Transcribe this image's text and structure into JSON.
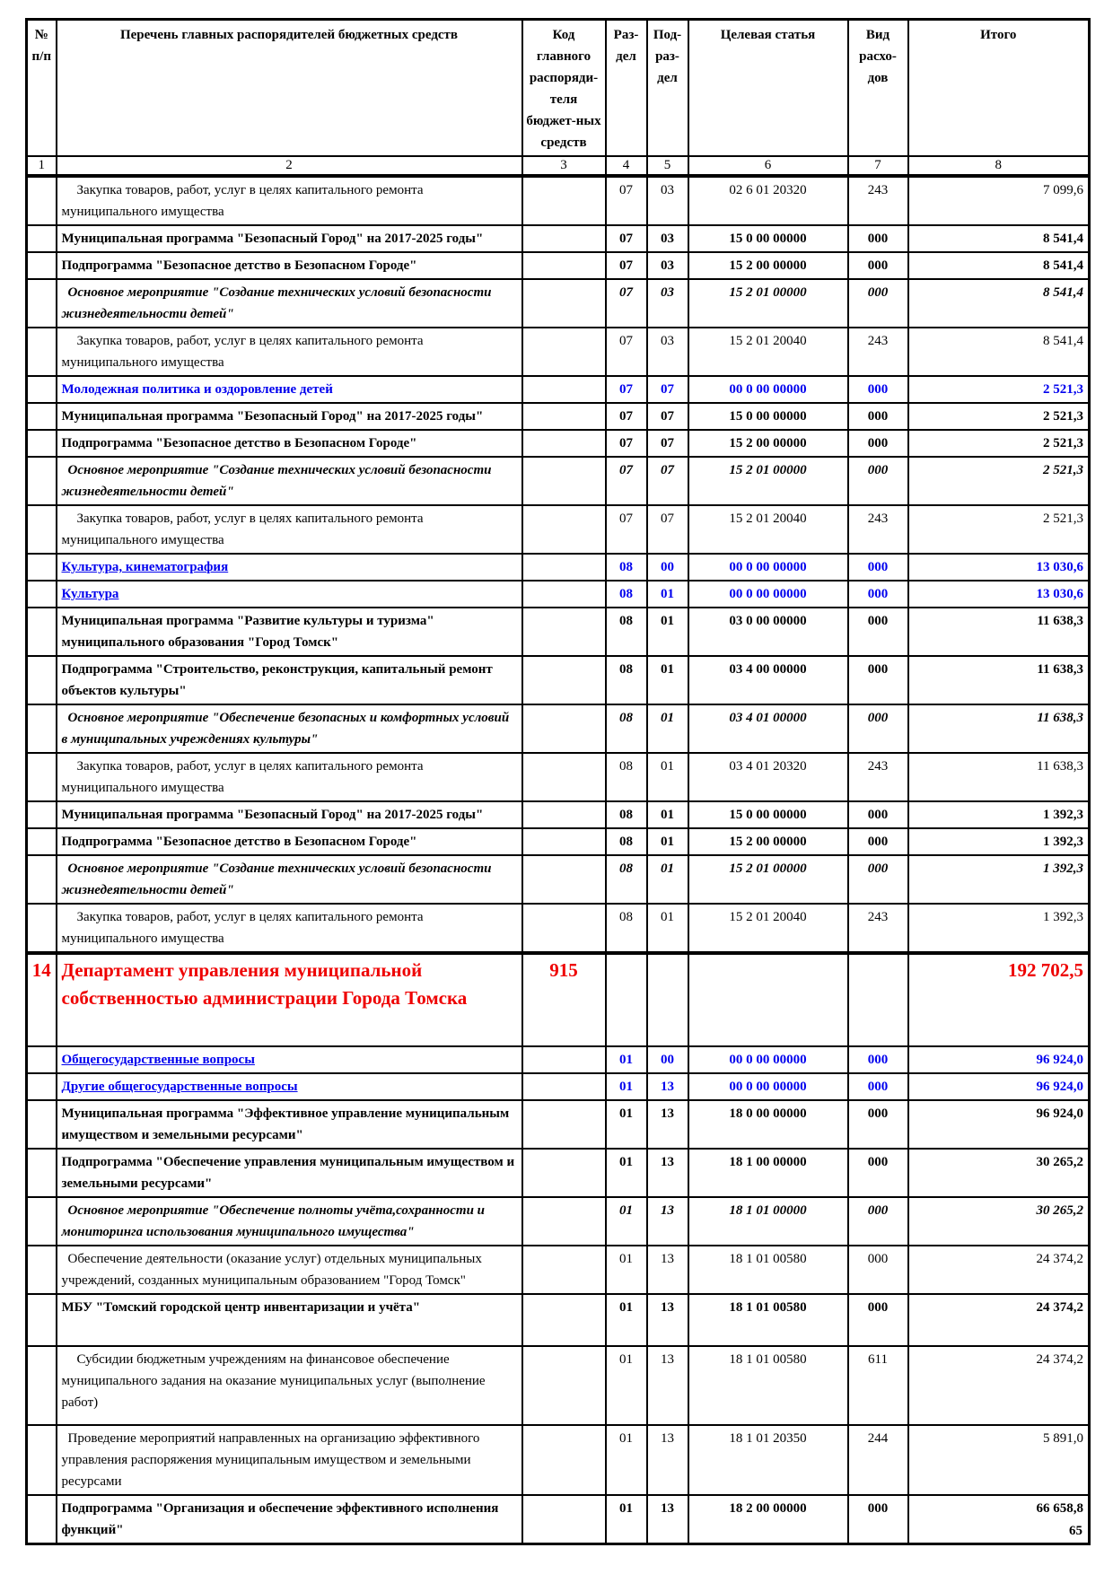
{
  "page": {
    "number": "65"
  },
  "colors": {
    "section_blue": "#0000ee",
    "department_red": "#ee0000",
    "text_black": "#000000"
  },
  "table": {
    "headers": {
      "col1": "№ п/п",
      "col2": "Перечень главных распорядителей бюджетных средств",
      "col3": "Код главного распоряди-теля бюджет-ных средств",
      "col4": "Раз-дел",
      "col5": "Под-раз-дел",
      "col6": "Целевая статья",
      "col7": "Вид расхо-дов",
      "col8": "Итого"
    },
    "column_numbers": [
      "1",
      "2",
      "3",
      "4",
      "5",
      "6",
      "7",
      "8"
    ],
    "rows": [
      {
        "n": "",
        "name": "Закупка товаров, работ, услуг в целях капитального ремонта муниципального имущества",
        "code": "",
        "rz": "07",
        "pr": "03",
        "cs": "02 6 01 20320",
        "vr": "243",
        "total": "7 099,6",
        "cls": "indent"
      },
      {
        "n": "",
        "name": "Муниципальная программа \"Безопасный Город\" на 2017-2025 годы\"",
        "code": "",
        "rz": "07",
        "pr": "03",
        "cs": "15 0 00 00000",
        "vr": "000",
        "total": "8 541,4",
        "cls": "bold"
      },
      {
        "n": "",
        "name": "Подпрограмма \"Безопасное детство в Безопасном Городе\"",
        "code": "",
        "rz": "07",
        "pr": "03",
        "cs": "15 2 00 00000",
        "vr": "000",
        "total": "8 541,4",
        "cls": "bold"
      },
      {
        "n": "",
        "name": "Основное мероприятие \"Создание технических условий безопасности жизнедеятельности детей\"",
        "code": "",
        "rz": "07",
        "pr": "03",
        "cs": "15 2 01 00000",
        "vr": "000",
        "total": "8 541,4",
        "cls": "bi ind-sm"
      },
      {
        "n": "",
        "name": "Закупка товаров, работ, услуг в целях капитального ремонта муниципального имущества",
        "code": "",
        "rz": "07",
        "pr": "03",
        "cs": "15 2 01 20040",
        "vr": "243",
        "total": "8 541,4",
        "cls": "indent"
      },
      {
        "n": "",
        "name": "Молодежная политика и оздоровление детей",
        "code": "",
        "rz": "07",
        "pr": "07",
        "cs": "00 0 00 00000",
        "vr": "000",
        "total": "2 521,3",
        "cls": "blue"
      },
      {
        "n": "",
        "name": "Муниципальная программа \"Безопасный Город\" на 2017-2025 годы\"",
        "code": "",
        "rz": "07",
        "pr": "07",
        "cs": "15 0 00 00000",
        "vr": "000",
        "total": "2 521,3",
        "cls": "bold"
      },
      {
        "n": "",
        "name": "Подпрограмма \"Безопасное детство в Безопасном Городе\"",
        "code": "",
        "rz": "07",
        "pr": "07",
        "cs": "15 2 00 00000",
        "vr": "000",
        "total": "2 521,3",
        "cls": "bold"
      },
      {
        "n": "",
        "name": "Основное мероприятие \"Создание технических условий безопасности жизнедеятельности детей\"",
        "code": "",
        "rz": "07",
        "pr": "07",
        "cs": "15 2 01 00000",
        "vr": "000",
        "total": "2 521,3",
        "cls": "bi ind-sm"
      },
      {
        "n": "",
        "name": "Закупка товаров, работ, услуг в целях капитального ремонта муниципального имущества",
        "code": "",
        "rz": "07",
        "pr": "07",
        "cs": "15 2 01 20040",
        "vr": "243",
        "total": "2 521,3",
        "cls": "indent"
      },
      {
        "n": "",
        "name": "Культура, кинематография",
        "code": "",
        "rz": "08",
        "pr": "00",
        "cs": "00 0 00 00000",
        "vr": "000",
        "total": "13 030,6",
        "cls": "blue ul"
      },
      {
        "n": "",
        "name": "Культура",
        "code": "",
        "rz": "08",
        "pr": "01",
        "cs": "00 0 00 00000",
        "vr": "000",
        "total": "13 030,6",
        "cls": "blue ul"
      },
      {
        "n": "",
        "name": "Муниципальная программа \"Развитие культуры и туризма\" муниципального образования \"Город Томск\"",
        "code": "",
        "rz": "08",
        "pr": "01",
        "cs": "03 0 00 00000",
        "vr": "000",
        "total": "11 638,3",
        "cls": "bold"
      },
      {
        "n": "",
        "name": "Подпрограмма \"Строительство, реконструкция, капитальный ремонт объектов культуры\"",
        "code": "",
        "rz": "08",
        "pr": "01",
        "cs": "03 4 00 00000",
        "vr": "000",
        "total": "11 638,3",
        "cls": "bold"
      },
      {
        "n": "",
        "name": "Основное мероприятие \"Обеспечение безопасных и комфортных условий в муниципальных учреждениях культуры\"",
        "code": "",
        "rz": "08",
        "pr": "01",
        "cs": "03 4 01 00000",
        "vr": "000",
        "total": "11 638,3",
        "cls": "bi ind-sm"
      },
      {
        "n": "",
        "name": "Закупка товаров, работ, услуг в целях капитального ремонта муниципального имущества",
        "code": "",
        "rz": "08",
        "pr": "01",
        "cs": "03 4 01 20320",
        "vr": "243",
        "total": "11 638,3",
        "cls": "indent"
      },
      {
        "n": "",
        "name": "Муниципальная программа \"Безопасный Город\" на 2017-2025 годы\"",
        "code": "",
        "rz": "08",
        "pr": "01",
        "cs": "15 0 00 00000",
        "vr": "000",
        "total": "1 392,3",
        "cls": "bold"
      },
      {
        "n": "",
        "name": "Подпрограмма \"Безопасное детство в Безопасном Городе\"",
        "code": "",
        "rz": "08",
        "pr": "01",
        "cs": "15 2 00 00000",
        "vr": "000",
        "total": "1 392,3",
        "cls": "bold"
      },
      {
        "n": "",
        "name": "Основное мероприятие \"Создание технических условий безопасности жизнедеятельности детей\"",
        "code": "",
        "rz": "08",
        "pr": "01",
        "cs": "15 2 01 00000",
        "vr": "000",
        "total": "1 392,3",
        "cls": "bi ind-sm"
      },
      {
        "n": "",
        "name": "Закупка товаров, работ, услуг в целях капитального ремонта муниципального имущества",
        "code": "",
        "rz": "08",
        "pr": "01",
        "cs": "15 2 01 20040",
        "vr": "243",
        "total": "1 392,3",
        "cls": "indent"
      },
      {
        "n": "14",
        "name": "Департамент управления муниципальной собственностью администрации Города Томска",
        "code": "915",
        "rz": "",
        "pr": "",
        "cs": "",
        "vr": "",
        "total": "192 702,5",
        "cls": "red thick-top tall-dept"
      },
      {
        "n": "",
        "name": "Общегосударственные вопросы",
        "code": "",
        "rz": "01",
        "pr": "00",
        "cs": "00 0 00 00000",
        "vr": "000",
        "total": "96 924,0",
        "cls": "blue ul"
      },
      {
        "n": "",
        "name": "Другие общегосударственные вопросы",
        "code": "",
        "rz": "01",
        "pr": "13",
        "cs": "00 0 00 00000",
        "vr": "000",
        "total": "96 924,0",
        "cls": "blue ul"
      },
      {
        "n": "",
        "name": "Муниципальная программа \"Эффективное управление муниципальным имуществом и земельными ресурсами\"",
        "code": "",
        "rz": "01",
        "pr": "13",
        "cs": "18 0 00 00000",
        "vr": "000",
        "total": "96 924,0",
        "cls": "bold"
      },
      {
        "n": "",
        "name": "Подпрограмма \"Обеспечение управления муниципальным имуществом и земельными ресурсами\"",
        "code": "",
        "rz": "01",
        "pr": "13",
        "cs": "18 1 00 00000",
        "vr": "000",
        "total": "30 265,2",
        "cls": "bold"
      },
      {
        "n": "",
        "name": "Основное мероприятие \"Обеспечение полноты учёта,сохранности и мониторинга использования муниципального имущества\"",
        "code": "",
        "rz": "01",
        "pr": "13",
        "cs": "18 1 01 00000",
        "vr": "000",
        "total": "30 265,2",
        "cls": "bi ind-sm"
      },
      {
        "n": "",
        "name": "Обеспечение деятельности (оказание услуг) отдельных муниципальных учреждений, созданных муниципальным образованием \"Город Томск\"",
        "code": "",
        "rz": "01",
        "pr": "13",
        "cs": "18 1 01 00580",
        "vr": "000",
        "total": "24 374,2",
        "cls": "ind-sm"
      },
      {
        "n": "",
        "name": "МБУ \"Томский городской центр инвентаризации и учёта\"",
        "code": "",
        "rz": "01",
        "pr": "13",
        "cs": "18 1 01 00580",
        "vr": "000",
        "total": "24 374,2",
        "cls": "bold tall-mbu"
      },
      {
        "n": "",
        "name": "Субсидии бюджетным учреждениям на финансовое обеспечение муниципального задания на оказание муниципальных услуг (выполнение работ)",
        "code": "",
        "rz": "01",
        "pr": "13",
        "cs": "18 1 01 00580",
        "vr": "611",
        "total": "24 374,2",
        "cls": "indent tall-sub"
      },
      {
        "n": "",
        "name": "Проведение мероприятий направленных на организацию эффективного управления распоряжения муниципальным имуществом и земельными ресурсами",
        "code": "",
        "rz": "01",
        "pr": "13",
        "cs": "18 1 01 20350",
        "vr": "244",
        "total": "5 891,0",
        "cls": "ind-sm"
      },
      {
        "n": "",
        "name": "Подпрограмма \"Организация и обеспечение эффективного исполнения функций\"",
        "code": "",
        "rz": "01",
        "pr": "13",
        "cs": "18 2 00 00000",
        "vr": "000",
        "total": "66 658,8",
        "cls": "bold"
      }
    ]
  }
}
